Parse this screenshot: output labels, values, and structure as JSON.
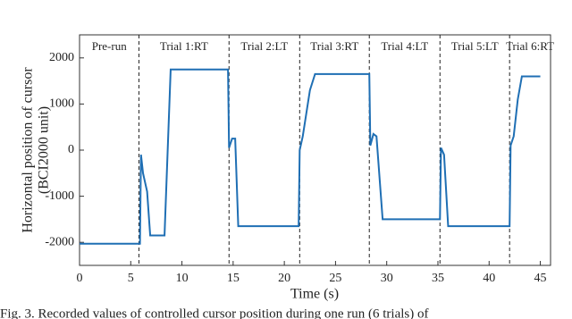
{
  "chart_data": {
    "type": "line",
    "x_label": "Time (s)",
    "y_label": [
      "Horizontal position of cursor",
      "(BCI2000 unit)"
    ],
    "x": [
      0,
      5.9,
      6.0,
      6.2,
      6.6,
      6.9,
      8.3,
      8.9,
      14.5,
      14.6,
      14.9,
      15.2,
      15.5,
      21.4,
      21.5,
      21.8,
      22.5,
      23.0,
      28.3,
      28.4,
      28.7,
      29.0,
      29.6,
      35.2,
      35.3,
      35.6,
      36.0,
      42.0,
      42.1,
      42.4,
      42.8,
      43.2,
      45.0
    ],
    "values": [
      -2030,
      -2030,
      -100,
      -500,
      -900,
      -1850,
      -1850,
      1750,
      1750,
      50,
      250,
      250,
      -1650,
      -1650,
      0,
      300,
      1300,
      1650,
      1650,
      100,
      350,
      300,
      -1500,
      -1500,
      50,
      -100,
      -1650,
      -1650,
      100,
      300,
      1100,
      1600,
      1600
    ],
    "color": "#1f6fb4",
    "xlim": [
      0,
      46
    ],
    "xticks": [
      0,
      5,
      10,
      15,
      20,
      25,
      30,
      35,
      40,
      45
    ],
    "ylim": [
      -2500,
      2500
    ],
    "yticks": [
      -2000,
      -1000,
      0,
      1000,
      2000
    ],
    "boundaries": [
      5.8,
      14.6,
      21.5,
      28.3,
      35.2,
      42.0
    ],
    "segments": [
      "Pre-run",
      "Trial 1:RT",
      "Trial 2:LT",
      "Trial 3:RT",
      "Trial 4:LT",
      "Trial 5:LT",
      "Trial 6:RT"
    ],
    "caption": "Fig. 3. Recorded values of controlled cursor position during one run (6 trials) of"
  }
}
